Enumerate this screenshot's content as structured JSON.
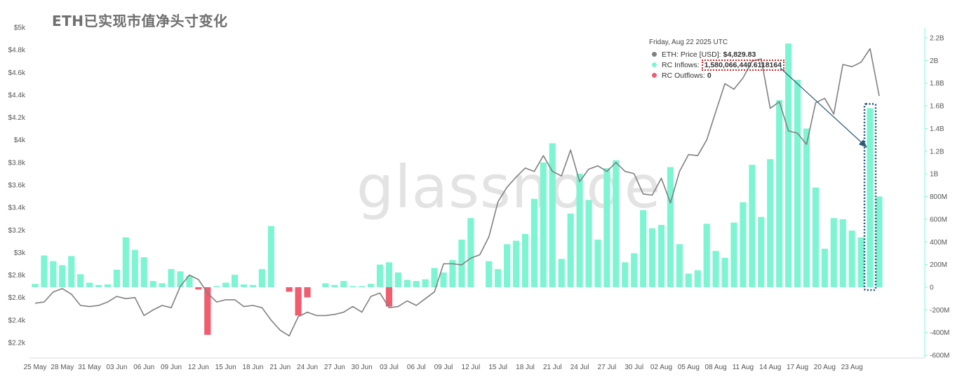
{
  "title": "ETH已实现市值净头寸变化",
  "watermark": "glassnode",
  "tooltip": {
    "date": "Friday, Aug 22 2025 UTC",
    "rows": [
      {
        "label": "ETH: Price [USD]:",
        "value": "$4,829.83",
        "color": "#808080"
      },
      {
        "label": "RC Inflows:",
        "value": "1,580,066,440.6118164",
        "color": "#7ef5d2"
      },
      {
        "label": "RC Outflows:",
        "value": "0",
        "color": "#ef5d6e"
      }
    ]
  },
  "chart_data": {
    "type": "bar",
    "x_ticks": [
      "25 May",
      "28 May",
      "31 May",
      "03 Jun",
      "06 Jun",
      "09 Jun",
      "12 Jun",
      "15 Jun",
      "18 Jun",
      "21 Jun",
      "24 Jun",
      "27 Jun",
      "30 Jun",
      "03 Jul",
      "06 Jul",
      "09 Jul",
      "12 Jul",
      "15 Jul",
      "18 Jul",
      "21 Jul",
      "24 Jul",
      "27 Jul",
      "30 Jul",
      "02 Aug",
      "05 Aug",
      "08 Aug",
      "11 Aug",
      "14 Aug",
      "17 Aug",
      "20 Aug",
      "23 Aug"
    ],
    "x_tick_start_index": 0,
    "x_tick_step": 3,
    "left_axis": {
      "ticks": [
        "$2.2k",
        "$2.4k",
        "$2.6k",
        "$2.8k",
        "$3k",
        "$3.2k",
        "$3.4k",
        "$3.6k",
        "$3.8k",
        "$4k",
        "$4.2k",
        "$4.4k",
        "$4.6k",
        "$4.8k",
        "$5k"
      ],
      "range": [
        2200,
        5000
      ]
    },
    "right_axis": {
      "ticks": [
        "-600M",
        "-400M",
        "-200M",
        "0",
        "200M",
        "400M",
        "600M",
        "800M",
        "1B",
        "1.2B",
        "1.4B",
        "1.6B",
        "1.8B",
        "2B",
        "2.2B"
      ],
      "range": [
        -600,
        2350
      ],
      "unit": "M"
    },
    "series": [
      {
        "name": "RC Inflows",
        "color": "#7ef5d2",
        "values": [
          30,
          280,
          230,
          195,
          275,
          115,
          40,
          20,
          25,
          155,
          440,
          330,
          265,
          55,
          35,
          160,
          140,
          100,
          0,
          0,
          10,
          40,
          110,
          25,
          20,
          160,
          540,
          0,
          0,
          0,
          0,
          0,
          35,
          20,
          55,
          10,
          10,
          30,
          200,
          220,
          130,
          65,
          55,
          70,
          170,
          130,
          240,
          420,
          610,
          0,
          230,
          160,
          380,
          410,
          470,
          780,
          1100,
          1270,
          250,
          650,
          1000,
          770,
          420,
          1050,
          1120,
          220,
          300,
          680,
          520,
          550,
          1060,
          380,
          120,
          150,
          560,
          320,
          260,
          570,
          750,
          1080,
          620,
          1130,
          1650,
          2150,
          1830,
          1400,
          880,
          340,
          610,
          600,
          500,
          440,
          1580,
          800
        ]
      },
      {
        "name": "RC Outflows",
        "color": "#ef5d6e",
        "values": [
          0,
          0,
          0,
          0,
          0,
          0,
          0,
          0,
          0,
          0,
          0,
          0,
          0,
          0,
          0,
          0,
          0,
          0,
          -20,
          -420,
          0,
          0,
          0,
          0,
          0,
          0,
          0,
          0,
          -40,
          -250,
          -90,
          0,
          0,
          0,
          0,
          0,
          0,
          0,
          0,
          -170,
          0,
          0,
          0,
          0,
          0,
          0,
          0,
          0,
          0,
          0,
          0,
          0,
          0,
          0,
          0,
          0,
          0,
          0,
          0,
          0,
          0,
          0,
          0,
          0,
          0,
          0,
          0,
          0,
          0,
          0,
          0,
          0,
          0,
          0,
          0,
          0,
          0,
          0,
          0,
          0,
          0,
          0,
          0,
          0,
          0,
          0,
          0,
          0,
          0,
          0,
          0,
          0,
          0,
          0
        ]
      },
      {
        "name": "ETH: Price [USD]",
        "color": "#808080",
        "axis": "left",
        "values": [
          2550,
          2560,
          2650,
          2680,
          2630,
          2530,
          2520,
          2530,
          2560,
          2610,
          2590,
          2600,
          2440,
          2490,
          2530,
          2510,
          2700,
          2800,
          2760,
          2640,
          2560,
          2580,
          2580,
          2520,
          2530,
          2510,
          2400,
          2310,
          2260,
          2430,
          2470,
          2440,
          2440,
          2450,
          2470,
          2520,
          2470,
          2610,
          2640,
          2510,
          2520,
          2570,
          2530,
          2590,
          2650,
          2900,
          2900,
          2890,
          2950,
          2980,
          3140,
          3450,
          3580,
          3670,
          3750,
          3720,
          3860,
          3720,
          3680,
          3910,
          3630,
          3740,
          3770,
          3720,
          3800,
          3720,
          3700,
          3520,
          3510,
          3660,
          3440,
          3720,
          3870,
          3860,
          4000,
          4250,
          4500,
          4450,
          4550,
          4700,
          4720,
          4280,
          4340,
          4080,
          4060,
          3960,
          4330,
          4370,
          4230,
          4670,
          4650,
          4690,
          4810,
          4390
        ]
      }
    ],
    "annotation": {
      "text": "",
      "highlight_index": 92
    },
    "grid": false,
    "legend": "tooltip"
  }
}
